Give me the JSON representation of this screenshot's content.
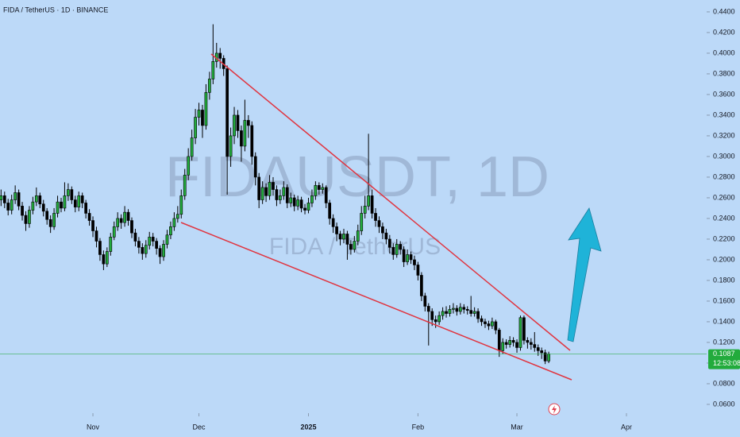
{
  "chart_data": {
    "type": "candlestick",
    "title": "FIDA / TetherUS · 1D · BINANCE",
    "watermark": "FIDAUSDT, 1D",
    "watermark_sub": "FIDA / TetherUS",
    "last_price": 0.1087,
    "countdown": "12:53:08",
    "up_color": "#22ab3c",
    "down_color": "#000000",
    "last_price_color": "#22ab3c",
    "xlim": [
      -0.3,
      199.7
    ],
    "ylim": [
      0.0515,
      0.4515
    ],
    "xticks": [
      {
        "value": 26,
        "label": "Nov"
      },
      {
        "value": 56,
        "label": "Dec"
      },
      {
        "value": 87,
        "label": "2025"
      },
      {
        "value": 118,
        "label": "Feb"
      },
      {
        "value": 146,
        "label": "Mar"
      },
      {
        "value": 177,
        "label": "Apr"
      }
    ],
    "yticks": [
      {
        "value": 0.06,
        "label": "0.0600"
      },
      {
        "value": 0.08,
        "label": "0.0800"
      },
      {
        "value": 0.1,
        "label": "0.1000"
      },
      {
        "value": 0.12,
        "label": "0.1200"
      },
      {
        "value": 0.14,
        "label": "0.1400"
      },
      {
        "value": 0.16,
        "label": "0.1600"
      },
      {
        "value": 0.18,
        "label": "0.1800"
      },
      {
        "value": 0.2,
        "label": "0.2000"
      },
      {
        "value": 0.22,
        "label": "0.2200"
      },
      {
        "value": 0.24,
        "label": "0.2400"
      },
      {
        "value": 0.26,
        "label": "0.2600"
      },
      {
        "value": 0.28,
        "label": "0.2800"
      },
      {
        "value": 0.3,
        "label": "0.3000"
      },
      {
        "value": 0.32,
        "label": "0.3200"
      },
      {
        "value": 0.34,
        "label": "0.3400"
      },
      {
        "value": 0.36,
        "label": "0.3600"
      },
      {
        "value": 0.38,
        "label": "0.3800"
      },
      {
        "value": 0.4,
        "label": "0.4000"
      },
      {
        "value": 0.42,
        "label": "0.4200"
      },
      {
        "value": 0.44,
        "label": "0.4400"
      }
    ],
    "open": [
      0.258,
      0.262,
      0.255,
      0.248,
      0.258,
      0.265,
      0.252,
      0.243,
      0.235,
      0.248,
      0.256,
      0.262,
      0.254,
      0.247,
      0.239,
      0.232,
      0.245,
      0.256,
      0.25,
      0.262,
      0.268,
      0.258,
      0.251,
      0.262,
      0.255,
      0.245,
      0.238,
      0.228,
      0.218,
      0.205,
      0.196,
      0.208,
      0.222,
      0.232,
      0.24,
      0.236,
      0.246,
      0.238,
      0.226,
      0.218,
      0.212,
      0.206,
      0.214,
      0.222,
      0.218,
      0.211,
      0.203,
      0.215,
      0.224,
      0.232,
      0.24,
      0.244,
      0.262,
      0.282,
      0.3,
      0.318,
      0.338,
      0.345,
      0.33,
      0.362,
      0.375,
      0.392,
      0.4,
      0.395,
      0.385,
      0.3,
      0.32,
      0.34,
      0.325,
      0.31,
      0.335,
      0.33,
      0.3,
      0.28,
      0.258,
      0.27,
      0.262,
      0.275,
      0.268,
      0.258,
      0.262,
      0.27,
      0.255,
      0.26,
      0.252,
      0.258,
      0.25,
      0.248,
      0.255,
      0.262,
      0.272,
      0.268,
      0.27,
      0.255,
      0.24,
      0.232,
      0.225,
      0.22,
      0.225,
      0.215,
      0.21,
      0.218,
      0.228,
      0.245,
      0.252,
      0.262,
      0.245,
      0.238,
      0.232,
      0.226,
      0.22,
      0.212,
      0.205,
      0.215,
      0.21,
      0.198,
      0.205,
      0.2,
      0.195,
      0.185,
      0.165,
      0.155,
      0.15,
      0.142,
      0.14,
      0.146,
      0.15,
      0.148,
      0.152,
      0.153,
      0.15,
      0.154,
      0.152,
      0.151,
      0.148,
      0.15,
      0.143,
      0.14,
      0.138,
      0.136,
      0.14,
      0.132,
      0.112,
      0.12,
      0.118,
      0.122,
      0.12,
      0.115,
      0.144,
      0.122,
      0.12,
      0.118,
      0.115,
      0.112,
      0.11,
      0.102
    ],
    "high": [
      0.268,
      0.266,
      0.259,
      0.263,
      0.272,
      0.268,
      0.256,
      0.247,
      0.252,
      0.261,
      0.27,
      0.265,
      0.258,
      0.25,
      0.243,
      0.25,
      0.262,
      0.26,
      0.275,
      0.274,
      0.271,
      0.262,
      0.266,
      0.265,
      0.258,
      0.249,
      0.242,
      0.232,
      0.221,
      0.209,
      0.212,
      0.226,
      0.237,
      0.246,
      0.244,
      0.252,
      0.249,
      0.241,
      0.23,
      0.222,
      0.216,
      0.219,
      0.227,
      0.226,
      0.221,
      0.214,
      0.219,
      0.229,
      0.237,
      0.246,
      0.252,
      0.268,
      0.288,
      0.308,
      0.326,
      0.346,
      0.352,
      0.35,
      0.37,
      0.382,
      0.428,
      0.41,
      0.405,
      0.398,
      0.388,
      0.328,
      0.348,
      0.345,
      0.33,
      0.355,
      0.34,
      0.334,
      0.304,
      0.284,
      0.276,
      0.274,
      0.282,
      0.28,
      0.272,
      0.268,
      0.276,
      0.273,
      0.265,
      0.263,
      0.262,
      0.261,
      0.254,
      0.26,
      0.268,
      0.276,
      0.275,
      0.274,
      0.272,
      0.258,
      0.244,
      0.236,
      0.228,
      0.23,
      0.228,
      0.219,
      0.223,
      0.234,
      0.252,
      0.262,
      0.322,
      0.268,
      0.25,
      0.242,
      0.236,
      0.23,
      0.224,
      0.216,
      0.22,
      0.218,
      0.213,
      0.21,
      0.208,
      0.204,
      0.198,
      0.188,
      0.168,
      0.158,
      0.153,
      0.146,
      0.15,
      0.154,
      0.155,
      0.156,
      0.158,
      0.156,
      0.158,
      0.157,
      0.155,
      0.165,
      0.154,
      0.153,
      0.146,
      0.143,
      0.141,
      0.144,
      0.142,
      0.134,
      0.124,
      0.123,
      0.126,
      0.125,
      0.123,
      0.146,
      0.146,
      0.125,
      0.124,
      0.13,
      0.118,
      0.115,
      0.113,
      0.111
    ],
    "low": [
      0.252,
      0.25,
      0.243,
      0.244,
      0.254,
      0.248,
      0.238,
      0.228,
      0.231,
      0.244,
      0.252,
      0.25,
      0.242,
      0.234,
      0.226,
      0.229,
      0.241,
      0.246,
      0.247,
      0.257,
      0.254,
      0.246,
      0.247,
      0.25,
      0.24,
      0.233,
      0.222,
      0.212,
      0.199,
      0.19,
      0.193,
      0.204,
      0.219,
      0.228,
      0.23,
      0.232,
      0.233,
      0.221,
      0.213,
      0.206,
      0.2,
      0.202,
      0.21,
      0.213,
      0.205,
      0.196,
      0.199,
      0.211,
      0.22,
      0.228,
      0.236,
      0.24,
      0.258,
      0.277,
      0.296,
      0.312,
      0.33,
      0.318,
      0.326,
      0.355,
      0.37,
      0.386,
      0.385,
      0.378,
      0.263,
      0.29,
      0.312,
      0.318,
      0.295,
      0.305,
      0.318,
      0.292,
      0.272,
      0.25,
      0.254,
      0.256,
      0.258,
      0.262,
      0.252,
      0.254,
      0.258,
      0.25,
      0.251,
      0.247,
      0.248,
      0.246,
      0.244,
      0.245,
      0.251,
      0.258,
      0.263,
      0.264,
      0.25,
      0.234,
      0.226,
      0.218,
      0.214,
      0.216,
      0.2,
      0.205,
      0.207,
      0.214,
      0.224,
      0.24,
      0.248,
      0.24,
      0.232,
      0.226,
      0.22,
      0.215,
      0.206,
      0.2,
      0.202,
      0.205,
      0.193,
      0.195,
      0.196,
      0.19,
      0.18,
      0.16,
      0.15,
      0.117,
      0.136,
      0.134,
      0.137,
      0.142,
      0.144,
      0.145,
      0.148,
      0.146,
      0.147,
      0.148,
      0.147,
      0.145,
      0.145,
      0.139,
      0.136,
      0.134,
      0.132,
      0.133,
      0.128,
      0.106,
      0.109,
      0.114,
      0.115,
      0.116,
      0.11,
      0.112,
      0.118,
      0.114,
      0.113,
      0.111,
      0.107,
      0.104,
      0.099,
      0.1
    ],
    "close": [
      0.262,
      0.255,
      0.248,
      0.258,
      0.265,
      0.252,
      0.243,
      0.235,
      0.248,
      0.256,
      0.262,
      0.254,
      0.247,
      0.239,
      0.232,
      0.245,
      0.256,
      0.25,
      0.262,
      0.268,
      0.258,
      0.251,
      0.262,
      0.255,
      0.245,
      0.238,
      0.228,
      0.218,
      0.205,
      0.196,
      0.208,
      0.222,
      0.232,
      0.24,
      0.236,
      0.246,
      0.238,
      0.226,
      0.218,
      0.212,
      0.206,
      0.214,
      0.222,
      0.218,
      0.211,
      0.203,
      0.215,
      0.224,
      0.232,
      0.24,
      0.244,
      0.262,
      0.282,
      0.3,
      0.318,
      0.338,
      0.345,
      0.33,
      0.362,
      0.375,
      0.392,
      0.4,
      0.395,
      0.385,
      0.3,
      0.32,
      0.34,
      0.325,
      0.31,
      0.335,
      0.33,
      0.3,
      0.28,
      0.258,
      0.27,
      0.262,
      0.275,
      0.268,
      0.258,
      0.262,
      0.27,
      0.255,
      0.26,
      0.252,
      0.258,
      0.25,
      0.248,
      0.255,
      0.262,
      0.272,
      0.268,
      0.27,
      0.255,
      0.24,
      0.232,
      0.225,
      0.22,
      0.225,
      0.215,
      0.21,
      0.218,
      0.228,
      0.245,
      0.252,
      0.262,
      0.245,
      0.238,
      0.232,
      0.226,
      0.22,
      0.212,
      0.205,
      0.215,
      0.21,
      0.198,
      0.205,
      0.2,
      0.195,
      0.185,
      0.165,
      0.155,
      0.15,
      0.142,
      0.14,
      0.146,
      0.15,
      0.148,
      0.152,
      0.153,
      0.15,
      0.154,
      0.152,
      0.151,
      0.148,
      0.15,
      0.143,
      0.14,
      0.138,
      0.136,
      0.14,
      0.132,
      0.112,
      0.12,
      0.118,
      0.122,
      0.12,
      0.115,
      0.144,
      0.122,
      0.12,
      0.118,
      0.115,
      0.112,
      0.11,
      0.102,
      0.1087
    ]
  }
}
